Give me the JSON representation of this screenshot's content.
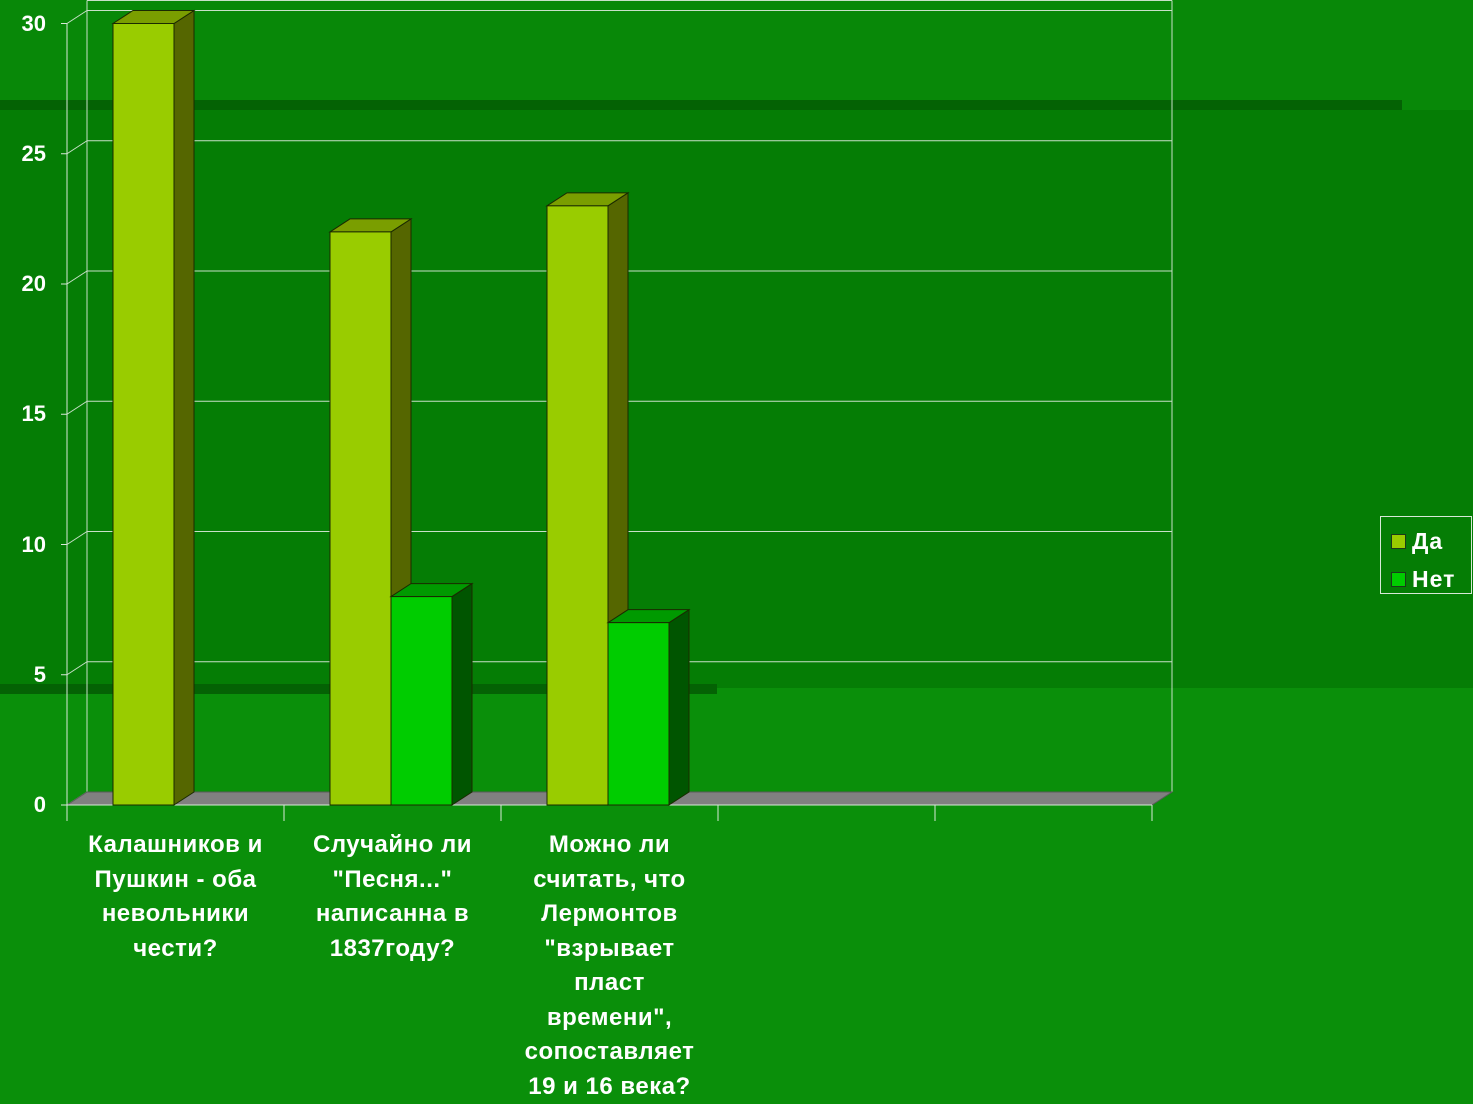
{
  "chart_data": {
    "type": "bar",
    "categories": [
      "Калашников и Пушкин - оба невольники чести?",
      "Случайно ли \"Песня...\" написанна в 1837году?",
      "Можно ли считать, что Лермонтов \"взрывает пласт времени\", сопоставляет 19 и 16 века?",
      "",
      ""
    ],
    "category_lines": [
      [
        "Калашников и",
        "Пушкин - оба",
        "невольники",
        "чести?"
      ],
      [
        "Случайно ли",
        "\"Песня...\"",
        "написанна в",
        "1837году?"
      ],
      [
        "Можно ли",
        "считать, что",
        "Лермонтов",
        "\"взрывает",
        "пласт",
        "времени\",",
        "сопоставляет",
        "19 и 16 века?"
      ]
    ],
    "series": [
      {
        "name": "Да",
        "values": [
          30,
          22,
          23,
          0,
          0
        ],
        "color": "#99cc00",
        "side_color": "#556600",
        "top_color": "#7a9e00"
      },
      {
        "name": "Нет",
        "values": [
          0,
          8,
          7,
          0,
          0
        ],
        "color": "#00cc00",
        "side_color": "#005500",
        "top_color": "#009a00"
      }
    ],
    "yticks": [
      0,
      5,
      10,
      15,
      20,
      25,
      30
    ],
    "ylim": [
      0,
      30
    ],
    "grid": true,
    "legend_position": "right",
    "colors": {
      "floor": "#808080",
      "gridline": "#c8e0c8",
      "axis": "#d8e8d8"
    }
  }
}
